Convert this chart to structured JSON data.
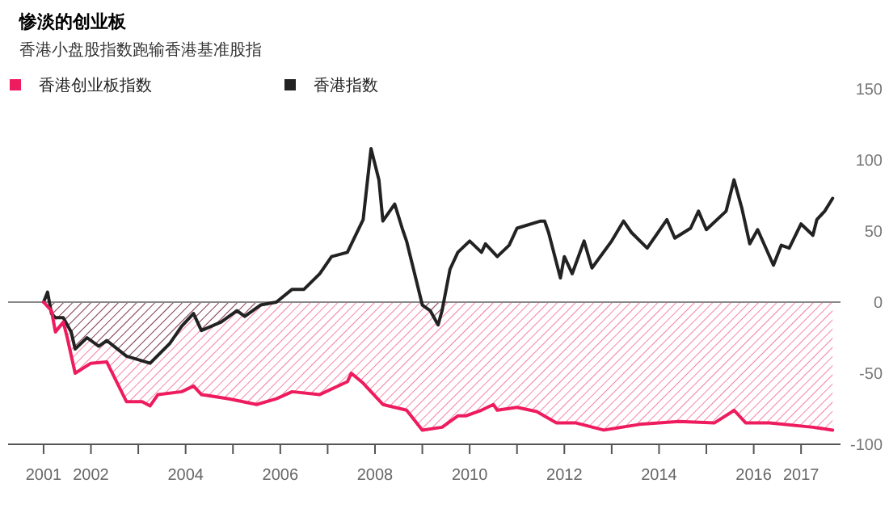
{
  "chart_data": {
    "type": "area",
    "title": "惨淡的创业板",
    "subtitle": "香港小盘股指数跑输香港基准股指",
    "legend": "top left",
    "grid": false,
    "xlim": [
      "2000-04",
      "2017-11"
    ],
    "xticks": [
      {
        "value": "2001-01",
        "label": "2001"
      },
      {
        "value": "2002-01",
        "label": "2002"
      },
      {
        "value": "2003-01",
        "label": null
      },
      {
        "value": "2004-01",
        "label": "2004"
      },
      {
        "value": "2005-01",
        "label": null
      },
      {
        "value": "2006-01",
        "label": "2006"
      },
      {
        "value": "2007-01",
        "label": null
      },
      {
        "value": "2008-01",
        "label": "2008"
      },
      {
        "value": "2009-01",
        "label": null
      },
      {
        "value": "2010-01",
        "label": "2010"
      },
      {
        "value": "2011-01",
        "label": null
      },
      {
        "value": "2012-01",
        "label": "2012"
      },
      {
        "value": "2013-01",
        "label": null
      },
      {
        "value": "2014-01",
        "label": "2014"
      },
      {
        "value": "2015-01",
        "label": null
      },
      {
        "value": "2016-01",
        "label": "2016"
      },
      {
        "value": "2017-01",
        "label": "2017"
      }
    ],
    "ylim": [
      -100,
      150
    ],
    "yticks": [
      -100,
      -50,
      0,
      50,
      100,
      150
    ],
    "ref_lines": [
      {
        "axis": "y",
        "value": 0,
        "color": "#888888"
      }
    ],
    "series": [
      {
        "name": "香港创业板指数",
        "color": "#ee1c5e",
        "x": [
          "2001-01",
          "2001-03",
          "2001-04",
          "2001-06",
          "2001-07",
          "2001-09",
          "2002-01",
          "2002-05",
          "2002-10",
          "2003-02",
          "2003-04",
          "2003-06",
          "2003-12",
          "2004-03",
          "2004-05",
          "2004-12",
          "2005-07",
          "2005-12",
          "2006-04",
          "2006-11",
          "2007-06",
          "2007-07",
          "2007-10",
          "2008-03",
          "2008-09",
          "2009-01",
          "2009-06",
          "2009-10",
          "2009-12",
          "2010-04",
          "2010-07",
          "2010-08",
          "2011-01",
          "2011-06",
          "2011-11",
          "2012-04",
          "2012-11",
          "2013-08",
          "2014-06",
          "2015-03",
          "2015-07",
          "2015-08",
          "2015-11",
          "2016-05",
          "2017-04",
          "2017-09"
        ],
        "values": [
          0,
          -6,
          -21,
          -14,
          -25,
          -50,
          -43,
          -42,
          -70,
          -70,
          -73,
          -65,
          -63,
          -59,
          -65,
          -68,
          -72,
          -68,
          -63,
          -65,
          -56,
          -50,
          -57,
          -72,
          -76,
          -90,
          -88,
          -80,
          -80,
          -76,
          -72,
          -76,
          -74,
          -77,
          -85,
          -85,
          -90,
          -86,
          -84,
          -85,
          -78,
          -76,
          -85,
          -85,
          -88,
          -90
        ]
      },
      {
        "name": "香港指数",
        "color": "#222222",
        "x": [
          "2001-01",
          "2001-02",
          "2001-03",
          "2001-04",
          "2001-06",
          "2001-08",
          "2001-09",
          "2001-12",
          "2002-03",
          "2002-05",
          "2002-10",
          "2003-04",
          "2003-09",
          "2003-12",
          "2004-03",
          "2004-05",
          "2004-10",
          "2005-02",
          "2005-04",
          "2005-08",
          "2005-12",
          "2006-04",
          "2006-07",
          "2006-11",
          "2007-02",
          "2007-06",
          "2007-10",
          "2007-12",
          "2008-02",
          "2008-03",
          "2008-06",
          "2008-08",
          "2008-09",
          "2009-01",
          "2009-03",
          "2009-05",
          "2009-06",
          "2009-08",
          "2009-10",
          "2010-01",
          "2010-04",
          "2010-05",
          "2010-08",
          "2010-11",
          "2011-01",
          "2011-07",
          "2011-08",
          "2011-09",
          "2011-12",
          "2012-01",
          "2012-03",
          "2012-06",
          "2012-08",
          "2013-01",
          "2013-04",
          "2013-06",
          "2013-10",
          "2014-03",
          "2014-05",
          "2014-09",
          "2014-11",
          "2015-01",
          "2015-06",
          "2015-08",
          "2015-10",
          "2015-12",
          "2016-02",
          "2016-06",
          "2016-08",
          "2016-10",
          "2017-01",
          "2017-04",
          "2017-05",
          "2017-07",
          "2017-09"
        ],
        "values": [
          0,
          7,
          -8,
          -11,
          -11,
          -21,
          -33,
          -25,
          -31,
          -27,
          -38,
          -43,
          -29,
          -17,
          -8,
          -20,
          -14,
          -6,
          -10,
          -2,
          0,
          9,
          9,
          20,
          32,
          35,
          58,
          108,
          86,
          57,
          69,
          51,
          43,
          -2,
          -6,
          -16,
          -6,
          23,
          35,
          43,
          35,
          41,
          32,
          40,
          52,
          57,
          57,
          49,
          17,
          32,
          20,
          43,
          24,
          43,
          57,
          49,
          38,
          58,
          45,
          52,
          64,
          51,
          64,
          86,
          66,
          41,
          51,
          26,
          40,
          38,
          55,
          47,
          58,
          64,
          73
        ]
      }
    ]
  }
}
